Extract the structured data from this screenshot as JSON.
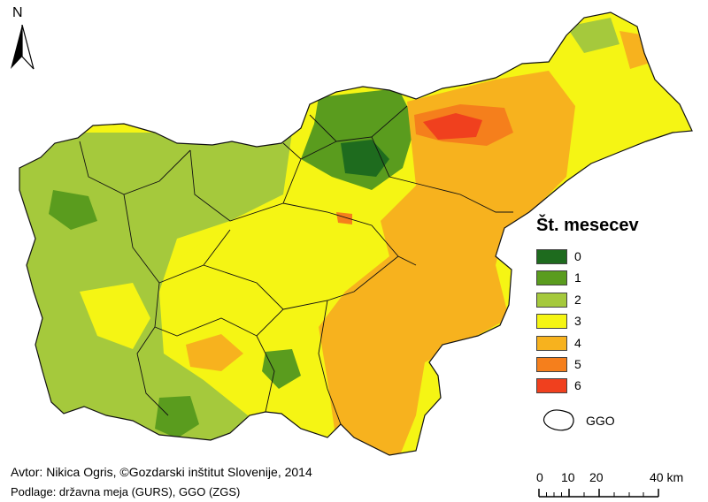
{
  "north": {
    "label": "N",
    "icon": "north-arrow-icon"
  },
  "legend": {
    "title": "Št. mesecev",
    "items": [
      {
        "label": "0",
        "color": "#1e6b1e"
      },
      {
        "label": "1",
        "color": "#5a9c1e"
      },
      {
        "label": "2",
        "color": "#a5c93c"
      },
      {
        "label": "3",
        "color": "#f5f514"
      },
      {
        "label": "4",
        "color": "#f7b21e"
      },
      {
        "label": "5",
        "color": "#f57f1c"
      },
      {
        "label": "6",
        "color": "#f0401e"
      }
    ],
    "boundary_label": "GGO",
    "boundary_icon": "ggo-boundary-icon"
  },
  "credits": {
    "author": "Avtor: Nikica Ogris, ©Gozdarski inštitut Slovenije, 2014",
    "source": "Podlage: državna meja (GURS), GGO (ZGS)"
  },
  "scale": {
    "labels": [
      "0",
      "10",
      "20",
      "40 km"
    ]
  }
}
